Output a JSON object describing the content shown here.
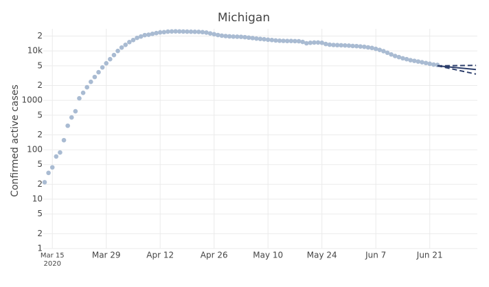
{
  "chart_data": {
    "type": "scatter",
    "title": "Michigan",
    "y_label": "Confirmed active cases",
    "log_y": true,
    "grid": true,
    "color": "#a9bbd2",
    "x": [
      "2020-03-13",
      "2020-03-14",
      "2020-03-15",
      "2020-03-16",
      "2020-03-17",
      "2020-03-18",
      "2020-03-19",
      "2020-03-20",
      "2020-03-21",
      "2020-03-22",
      "2020-03-23",
      "2020-03-24",
      "2020-03-25",
      "2020-03-26",
      "2020-03-27",
      "2020-03-28",
      "2020-03-29",
      "2020-03-30",
      "2020-03-31",
      "2020-04-01",
      "2020-04-02",
      "2020-04-03",
      "2020-04-04",
      "2020-04-05",
      "2020-04-06",
      "2020-04-07",
      "2020-04-08",
      "2020-04-09",
      "2020-04-10",
      "2020-04-11",
      "2020-04-12",
      "2020-04-13",
      "2020-04-14",
      "2020-04-15",
      "2020-04-16",
      "2020-04-17",
      "2020-04-18",
      "2020-04-19",
      "2020-04-20",
      "2020-04-21",
      "2020-04-22",
      "2020-04-23",
      "2020-04-24",
      "2020-04-25",
      "2020-04-26",
      "2020-04-27",
      "2020-04-28",
      "2020-04-29",
      "2020-04-30",
      "2020-05-01",
      "2020-05-02",
      "2020-05-03",
      "2020-05-04",
      "2020-05-05",
      "2020-05-06",
      "2020-05-07",
      "2020-05-08",
      "2020-05-09",
      "2020-05-10",
      "2020-05-11",
      "2020-05-12",
      "2020-05-13",
      "2020-05-14",
      "2020-05-15",
      "2020-05-16",
      "2020-05-17",
      "2020-05-18",
      "2020-05-19",
      "2020-05-20",
      "2020-05-21",
      "2020-05-22",
      "2020-05-23",
      "2020-05-24",
      "2020-05-25",
      "2020-05-26",
      "2020-05-27",
      "2020-05-28",
      "2020-05-29",
      "2020-05-30",
      "2020-05-31",
      "2020-06-01",
      "2020-06-02",
      "2020-06-03",
      "2020-06-04",
      "2020-06-05",
      "2020-06-06",
      "2020-06-07",
      "2020-06-08",
      "2020-06-09",
      "2020-06-10",
      "2020-06-11",
      "2020-06-12",
      "2020-06-13",
      "2020-06-14",
      "2020-06-15",
      "2020-06-16",
      "2020-06-17",
      "2020-06-18",
      "2020-06-19",
      "2020-06-20",
      "2020-06-21",
      "2020-06-22",
      "2020-06-23"
    ],
    "values": [
      22,
      34,
      44,
      73,
      88,
      156,
      306,
      450,
      600,
      1100,
      1420,
      1840,
      2370,
      2970,
      3710,
      4640,
      5620,
      6810,
      8250,
      10000,
      11700,
      13300,
      15100,
      16600,
      18400,
      19600,
      20900,
      21300,
      22200,
      23000,
      23700,
      24000,
      24600,
      24800,
      24900,
      24800,
      24700,
      24600,
      24500,
      24400,
      24300,
      24000,
      23500,
      22600,
      21800,
      21000,
      20400,
      20000,
      19700,
      19500,
      19400,
      19300,
      19000,
      18600,
      18200,
      17800,
      17500,
      17200,
      16900,
      16600,
      16300,
      16100,
      16000,
      15900,
      15900,
      15800,
      15700,
      15200,
      14300,
      14600,
      14800,
      14800,
      14600,
      13800,
      13400,
      13200,
      13100,
      13000,
      12900,
      12800,
      12600,
      12500,
      12300,
      12100,
      11800,
      11500,
      11000,
      10500,
      9900,
      9200,
      8500,
      7900,
      7500,
      7100,
      6800,
      6500,
      6300,
      6100,
      5900,
      5700,
      5500,
      5300,
      5200
    ],
    "forecast": {
      "x": [
        "2020-06-23",
        "2020-07-03"
      ],
      "color": "#2c3e6b",
      "series": [
        {
          "values": [
            5000,
            4200
          ],
          "dash": false
        },
        {
          "values": [
            5000,
            5100
          ],
          "dash": true
        },
        {
          "values": [
            5000,
            3400
          ],
          "dash": true
        }
      ]
    },
    "xlim": [
      "2020-03-13",
      "2020-07-03"
    ],
    "xticks": [
      {
        "value": "2020-03-15",
        "label": "Mar 15"
      },
      {
        "value": "2020-03-29",
        "label": "Mar 29"
      },
      {
        "value": "2020-04-12",
        "label": "Apr 12"
      },
      {
        "value": "2020-04-26",
        "label": "Apr 26"
      },
      {
        "value": "2020-05-10",
        "label": "May 10"
      },
      {
        "value": "2020-05-24",
        "label": "May 24"
      },
      {
        "value": "2020-06-07",
        "label": "Jun 7"
      },
      {
        "value": "2020-06-21",
        "label": "Jun 21"
      }
    ],
    "x_year": "2020",
    "ylim": [
      1,
      28000
    ],
    "yticks": [
      1,
      2,
      5,
      10,
      {
        "value": 20,
        "label": "2"
      },
      {
        "value": 50,
        "label": "5"
      },
      100,
      {
        "value": 200,
        "label": "2"
      },
      {
        "value": 500,
        "label": "5"
      },
      1000,
      {
        "value": 2000,
        "label": "2"
      },
      {
        "value": 5000,
        "label": "5"
      },
      {
        "value": 10000,
        "label": "10k"
      },
      {
        "value": 20000,
        "label": "2"
      }
    ]
  }
}
